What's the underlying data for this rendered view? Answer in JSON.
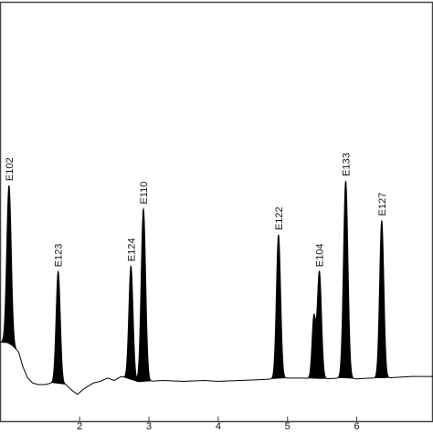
{
  "chart_data": {
    "type": "line",
    "title": "",
    "xlabel": "",
    "ylabel": "",
    "xlim": [
      0.85,
      7.1
    ],
    "ylim": [
      -0.55,
      4.6
    ],
    "x_ticks": [
      2,
      3,
      4,
      5,
      6
    ],
    "x_tick_labels": [
      "2",
      "3",
      "4",
      "5",
      "6"
    ],
    "grid": false,
    "colors": {
      "trace": "#000000",
      "frame": "#444444"
    },
    "baseline": [
      [
        0.85,
        0.42
      ],
      [
        0.96,
        0.41
      ],
      [
        1.02,
        0.38
      ],
      [
        1.12,
        0.3
      ],
      [
        1.18,
        0.12
      ],
      [
        1.25,
        -0.02
      ],
      [
        1.32,
        -0.08
      ],
      [
        1.4,
        -0.1
      ],
      [
        1.5,
        -0.1
      ],
      [
        1.6,
        -0.08
      ],
      [
        1.8,
        -0.1
      ],
      [
        1.9,
        -0.18
      ],
      [
        1.97,
        -0.22
      ],
      [
        2.05,
        -0.16
      ],
      [
        2.12,
        -0.12
      ],
      [
        2.2,
        -0.08
      ],
      [
        2.3,
        -0.06
      ],
      [
        2.4,
        -0.02
      ],
      [
        2.5,
        -0.05
      ],
      [
        2.6,
        0.0
      ],
      [
        2.7,
        -0.03
      ],
      [
        2.85,
        -0.07
      ],
      [
        3.0,
        -0.06
      ],
      [
        3.2,
        -0.05
      ],
      [
        3.5,
        -0.06
      ],
      [
        3.8,
        -0.05
      ],
      [
        4.0,
        -0.06
      ],
      [
        4.3,
        -0.05
      ],
      [
        4.6,
        -0.04
      ],
      [
        4.8,
        -0.03
      ],
      [
        5.0,
        -0.02
      ],
      [
        5.2,
        -0.02
      ],
      [
        5.5,
        -0.03
      ],
      [
        5.8,
        -0.02
      ],
      [
        6.0,
        -0.03
      ],
      [
        6.2,
        -0.02
      ],
      [
        6.4,
        -0.02
      ],
      [
        6.6,
        -0.01
      ],
      [
        6.8,
        0.0
      ],
      [
        7.1,
        0.0
      ]
    ],
    "peaks": [
      {
        "label": "E102",
        "x": 0.98,
        "height": 1.95,
        "width": 0.032
      },
      {
        "label": "E123",
        "x": 1.69,
        "height": 1.38,
        "width": 0.03
      },
      {
        "label": "E124",
        "x": 2.74,
        "height": 1.4,
        "width": 0.03
      },
      {
        "label": "E110",
        "x": 2.92,
        "height": 2.13,
        "width": 0.032
      },
      {
        "label": "E122",
        "x": 4.87,
        "height": 1.77,
        "width": 0.03
      },
      {
        "label": "",
        "x": 5.38,
        "height": 0.75,
        "width": 0.026
      },
      {
        "label": "E104",
        "x": 5.46,
        "height": 1.32,
        "width": 0.03
      },
      {
        "label": "E133",
        "x": 5.84,
        "height": 2.43,
        "width": 0.032
      },
      {
        "label": "E127",
        "x": 6.36,
        "height": 1.94,
        "width": 0.03
      }
    ]
  }
}
